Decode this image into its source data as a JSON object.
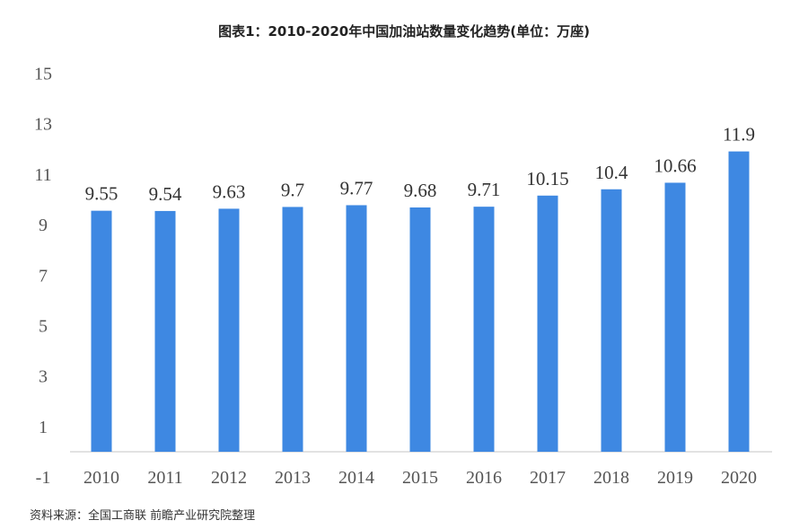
{
  "chart_data": {
    "type": "bar",
    "title": "图表1：2010-2020年中国加油站数量变化趋势(单位：万座)",
    "source": "资料来源：全国工商联 前瞻产业研究院整理",
    "categories": [
      "2010",
      "2011",
      "2012",
      "2013",
      "2014",
      "2015",
      "2016",
      "2017",
      "2018",
      "2019",
      "2020"
    ],
    "values": [
      9.55,
      9.54,
      9.63,
      9.7,
      9.77,
      9.68,
      9.71,
      10.15,
      10.4,
      10.66,
      11.9
    ],
    "data_labels": [
      "9.55",
      "9.54",
      "9.63",
      "9.7",
      "9.77",
      "9.68",
      "9.71",
      "10.15",
      "10.4",
      "10.66",
      "11.9"
    ],
    "yticks": [
      "-1",
      "1",
      "3",
      "5",
      "7",
      "9",
      "11",
      "13",
      "15"
    ],
    "ylim": [
      -1,
      15
    ],
    "xlabel": "",
    "ylabel": "",
    "grid": false,
    "bar_color": "#3e88e2",
    "watermark": "前瞻产业研究院"
  }
}
